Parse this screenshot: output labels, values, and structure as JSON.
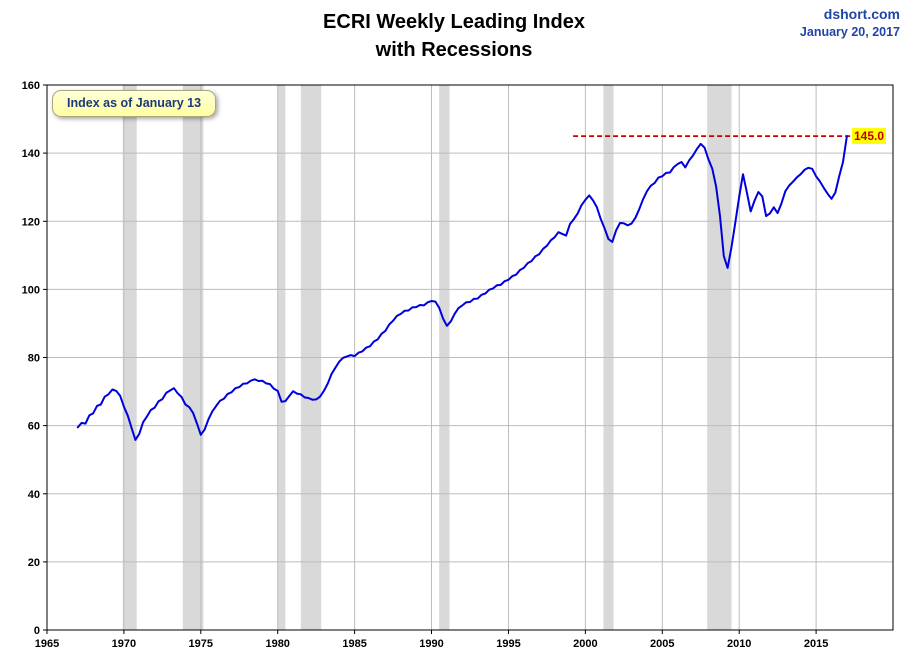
{
  "header": {
    "title_line1": "ECRI Weekly Leading Index",
    "title_line2": "with Recessions",
    "source": "dshort.com",
    "source_date": "January 20, 2017"
  },
  "annotations": {
    "note": "Index as of January 13",
    "latest_label": "145.0"
  },
  "chart_data": {
    "type": "line",
    "title": "ECRI Weekly Leading Index with Recessions",
    "xlabel": "",
    "ylabel": "",
    "x_range": [
      1965,
      2020
    ],
    "y_range": [
      0,
      160
    ],
    "x_ticks": [
      1965,
      1970,
      1975,
      1980,
      1985,
      1990,
      1995,
      2000,
      2005,
      2010,
      2015
    ],
    "y_ticks": [
      0,
      20,
      40,
      60,
      80,
      100,
      120,
      140,
      160
    ],
    "grid": true,
    "legend": "none",
    "colors": {
      "line": "#0000dd",
      "recession_band": "#d9d9d9",
      "grid": "#bdbdbd",
      "plot_border": "#000000",
      "reference": "#cc0000",
      "source_text": "#2144a8",
      "note_text": "#1b3a7a",
      "latest_label_bg": "#ffff00",
      "latest_label_text": "#c00000"
    },
    "recessions": [
      [
        1969.92,
        1970.83
      ],
      [
        1973.83,
        1975.17
      ],
      [
        1980.0,
        1980.5
      ],
      [
        1981.5,
        1982.83
      ],
      [
        1990.5,
        1991.17
      ],
      [
        2001.17,
        2001.83
      ],
      [
        2007.92,
        2009.5
      ]
    ],
    "reference_line": {
      "value": 145.0,
      "x_start": 1999.2,
      "x_end": 2017.3,
      "style": "dashed",
      "label": "145.0"
    },
    "series": [
      {
        "name": "ECRI Weekly Leading Index",
        "x_start": 1967.0,
        "x_step": 0.25,
        "y": [
          59.5,
          60.8,
          60.6,
          63.0,
          63.6,
          65.8,
          66.2,
          68.5,
          69.2,
          70.6,
          70.2,
          68.8,
          65.6,
          62.9,
          59.3,
          55.8,
          57.6,
          61.0,
          62.7,
          64.6,
          65.3,
          67.1,
          67.8,
          69.6,
          70.3,
          71.0,
          69.5,
          68.4,
          66.2,
          65.4,
          63.7,
          60.6,
          57.3,
          58.9,
          61.9,
          64.2,
          65.8,
          67.3,
          67.9,
          69.3,
          69.8,
          71.0,
          71.3,
          72.3,
          72.4,
          73.2,
          73.6,
          73.1,
          73.2,
          72.4,
          72.2,
          70.8,
          70.2,
          67.0,
          67.2,
          68.7,
          70.1,
          69.4,
          69.2,
          68.3,
          68.1,
          67.6,
          67.7,
          68.5,
          70.2,
          72.3,
          75.2,
          77.0,
          78.8,
          79.9,
          80.3,
          80.7,
          80.4,
          81.4,
          81.8,
          82.9,
          83.3,
          84.7,
          85.3,
          87.0,
          87.8,
          89.7,
          90.8,
          92.2,
          92.8,
          93.7,
          93.8,
          94.7,
          94.8,
          95.4,
          95.3,
          96.2,
          96.6,
          96.4,
          94.6,
          91.4,
          89.3,
          90.6,
          92.8,
          94.5,
          95.3,
          96.2,
          96.3,
          97.2,
          97.3,
          98.4,
          98.8,
          99.9,
          100.3,
          101.2,
          101.3,
          102.4,
          102.8,
          103.9,
          104.3,
          105.7,
          106.3,
          107.7,
          108.3,
          109.7,
          110.3,
          111.9,
          112.8,
          114.4,
          115.3,
          116.8,
          116.3,
          115.8,
          119.2,
          120.6,
          122.3,
          124.7,
          126.3,
          127.6,
          126.1,
          124.1,
          120.7,
          117.9,
          114.8,
          113.9,
          117.3,
          119.5,
          119.4,
          118.8,
          119.3,
          121.0,
          123.5,
          126.4,
          128.8,
          130.4,
          131.2,
          132.8,
          133.2,
          134.2,
          134.3,
          135.9,
          136.8,
          137.4,
          135.8,
          137.9,
          139.3,
          141.2,
          142.7,
          141.6,
          138.2,
          135.4,
          130.2,
          121.5,
          109.8,
          106.3,
          112.4,
          119.6,
          127.2,
          133.8,
          128.4,
          122.9,
          126.1,
          128.6,
          127.3,
          121.5,
          122.3,
          124.1,
          122.4,
          125.3,
          128.8,
          130.5,
          131.6,
          132.9,
          133.8,
          135.1,
          135.7,
          135.4,
          133.2,
          131.7,
          129.8,
          128.1,
          126.6,
          128.4,
          133.2,
          137.4,
          145.0
        ]
      }
    ]
  }
}
